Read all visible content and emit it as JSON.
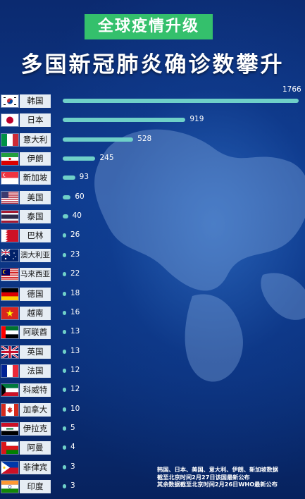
{
  "tag_text": "全球疫情升级",
  "headline": "多国新冠肺炎确诊数攀升",
  "notes": [
    "韩国、日本、美国、意大利、伊朗、新加坡数据",
    "截至北京时间2月27日该国最新公布",
    "其余数据截至北京时间2月26日WHO最新公布"
  ],
  "chart_data": {
    "type": "bar",
    "orientation": "horizontal",
    "categories": [
      "韩国",
      "日本",
      "意大利",
      "伊朗",
      "新加坡",
      "美国",
      "泰国",
      "巴林",
      "澳大利亚",
      "马来西亚",
      "德国",
      "越南",
      "阿联酋",
      "英国",
      "法国",
      "科威特",
      "加拿大",
      "伊拉克",
      "阿曼",
      "菲律宾",
      "印度"
    ],
    "values": [
      1766,
      919,
      528,
      245,
      93,
      60,
      40,
      26,
      23,
      22,
      18,
      16,
      13,
      13,
      12,
      12,
      10,
      5,
      4,
      3,
      3
    ],
    "xlim": [
      0,
      1766
    ],
    "bar_color": "#6fd0c8",
    "flags": [
      "kr",
      "jp",
      "it",
      "ir",
      "sg",
      "us",
      "th",
      "bh",
      "au",
      "my",
      "de",
      "vn",
      "ae",
      "gb",
      "fr",
      "kw",
      "ca",
      "iq",
      "om",
      "ph",
      "in"
    ]
  }
}
